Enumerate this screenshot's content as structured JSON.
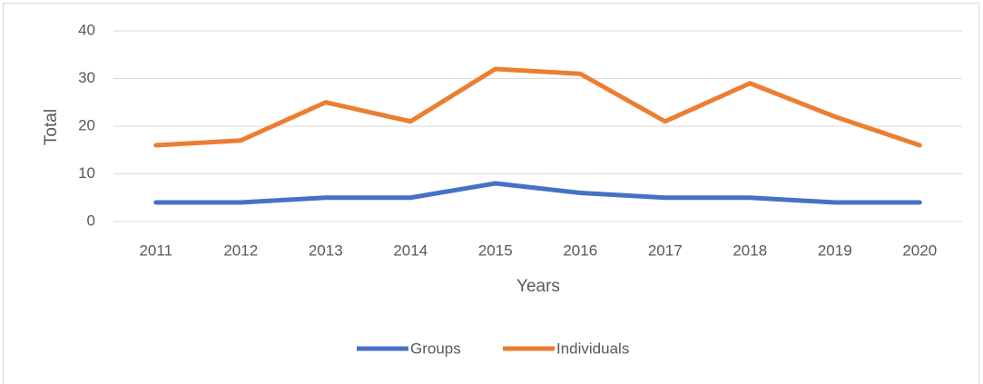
{
  "chart_data": {
    "type": "line",
    "x_label": "Years",
    "y_label": "Total",
    "categories": [
      "2011",
      "2012",
      "2013",
      "2014",
      "2015",
      "2016",
      "2017",
      "2018",
      "2019",
      "2020"
    ],
    "series": [
      {
        "name": "Groups",
        "color": "#4472c4",
        "values": [
          4,
          4,
          5,
          5,
          8,
          6,
          5,
          5,
          4,
          4
        ]
      },
      {
        "name": "Individuals",
        "color": "#ed7d31",
        "values": [
          16,
          17,
          25,
          21,
          32,
          31,
          21,
          29,
          22,
          16
        ]
      }
    ],
    "ylim": [
      0,
      40
    ],
    "yticks": [
      0,
      10,
      20,
      30,
      40
    ],
    "grid": true,
    "legend": "bottom"
  }
}
